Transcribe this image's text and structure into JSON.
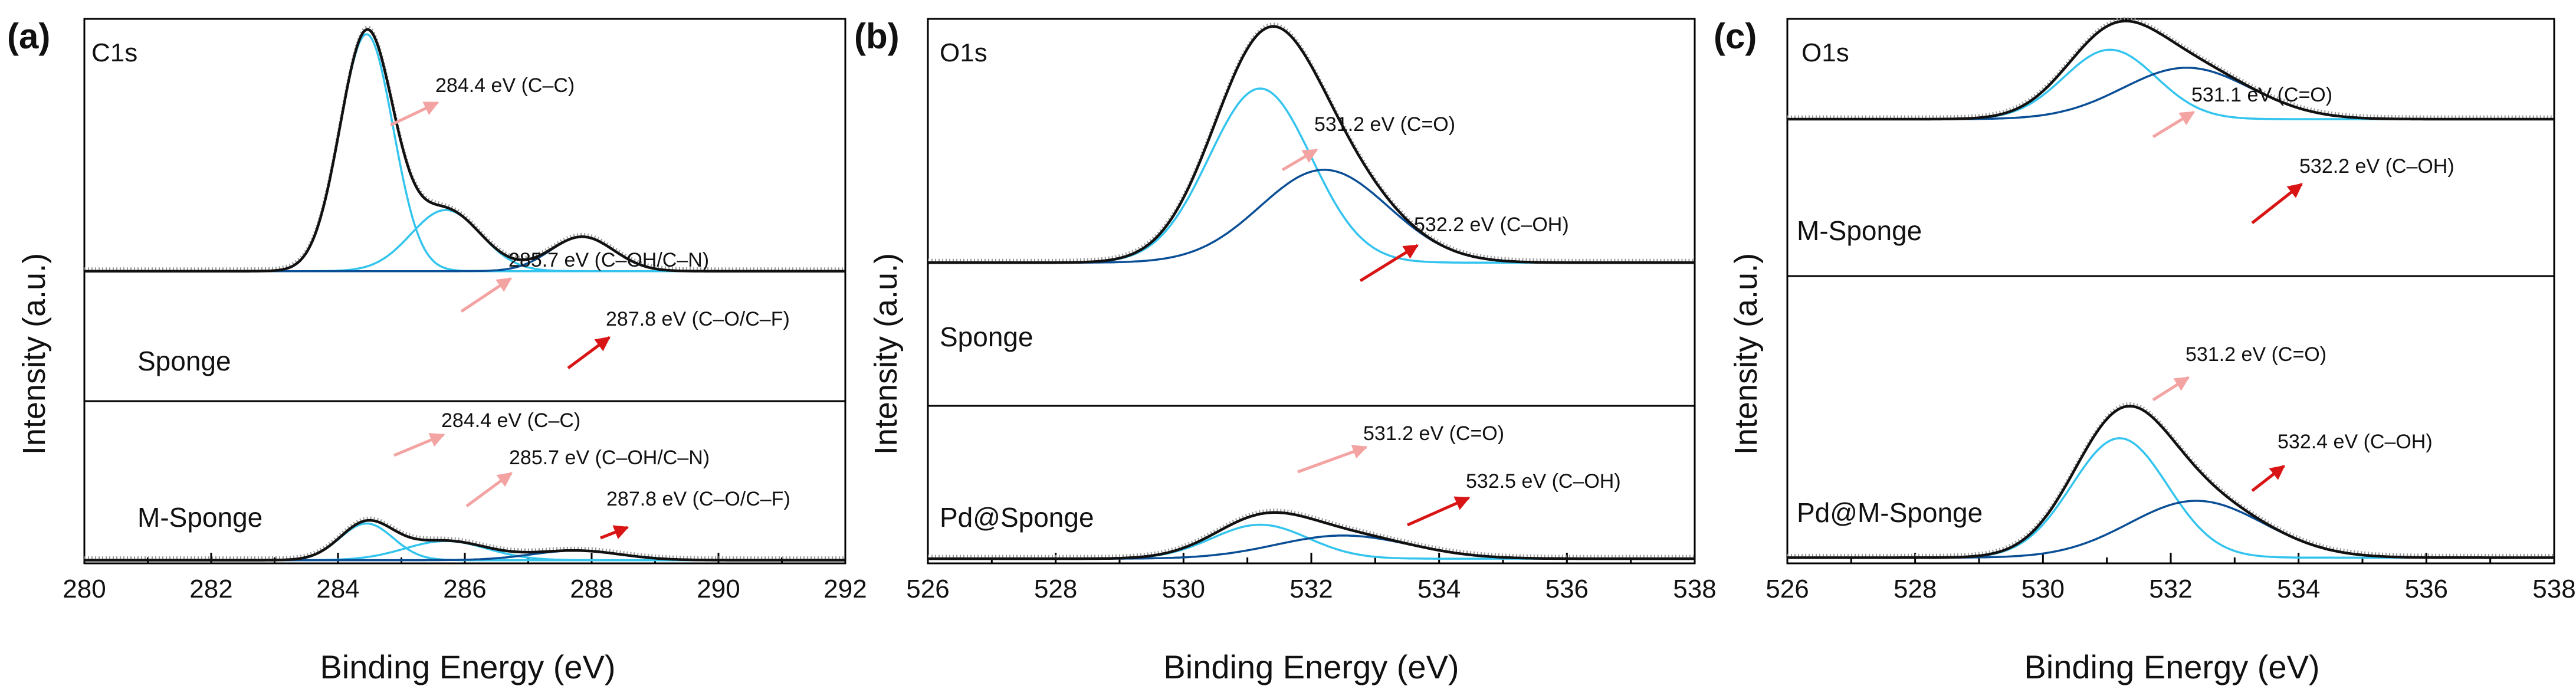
{
  "colors": {
    "component_light": "#33c4ee",
    "component_dark": "#0a4f96",
    "envelope": "#111111",
    "raw_data": "#9a9a9a",
    "arrow_light": "#f4a3a3",
    "arrow_dark": "#d81414",
    "axis": "#000000"
  },
  "chart_data": [
    {
      "type": "line",
      "panel_label": "(a)",
      "title": "C1s",
      "xlabel": "Binding Energy (eV)",
      "ylabel": "Intensity (a.u.)",
      "xlim": [
        280,
        292
      ],
      "ylim": [
        0,
        100
      ],
      "x_ticks": [
        "280",
        "282",
        "284",
        "286",
        "288",
        "290",
        "292"
      ],
      "spectra": [
        {
          "name": "Sponge",
          "baseline": 34,
          "components": [
            {
              "center": 284.45,
              "height": 62,
              "width": 0.42,
              "color": "light"
            },
            {
              "center": 285.7,
              "height": 16,
              "width": 0.55,
              "color": "light"
            },
            {
              "center": 287.85,
              "height": 9,
              "width": 0.5,
              "color": "dark"
            }
          ],
          "annotations": [
            {
              "text": "284.4 eV (C–C)",
              "x": 284.4,
              "arrow": "light"
            },
            {
              "text": "285.7 eV (C–OH/C–N)",
              "x": 285.7,
              "arrow": "light"
            },
            {
              "text": "287.8 eV (C–O/C–F)",
              "x": 287.8,
              "arrow": "dark"
            }
          ]
        },
        {
          "name": "M-Sponge",
          "baseline": 2,
          "components": [
            {
              "center": 284.45,
              "height": 23,
              "width": 0.42,
              "color": "light"
            },
            {
              "center": 285.7,
              "height": 12,
              "width": 0.65,
              "color": "light"
            },
            {
              "center": 287.75,
              "height": 6,
              "width": 0.7,
              "color": "dark"
            }
          ],
          "annotations": [
            {
              "text": "284.4 eV (C–C)",
              "x": 284.4,
              "arrow": "light"
            },
            {
              "text": "285.7 eV (C–OH/C–N)",
              "x": 285.7,
              "arrow": "light"
            },
            {
              "text": "287.8 eV (C–O/C–F)",
              "x": 287.8,
              "arrow": "dark"
            }
          ]
        }
      ]
    },
    {
      "type": "line",
      "panel_label": "(b)",
      "title": "O1s",
      "xlabel": "Binding Energy (eV)",
      "ylabel": "Intensity (a.u.)",
      "xlim": [
        526,
        538
      ],
      "ylim": [
        0,
        100
      ],
      "x_ticks": [
        "526",
        "528",
        "530",
        "532",
        "534",
        "536",
        "538"
      ],
      "spectra": [
        {
          "name": "Sponge",
          "baseline": 37,
          "components": [
            {
              "center": 531.2,
              "height": 45,
              "width": 0.8,
              "color": "light"
            },
            {
              "center": 532.2,
              "height": 24,
              "width": 1.0,
              "color": "dark"
            }
          ],
          "annotations": [
            {
              "text": "531.2 eV (C=O)",
              "x": 531.2,
              "arrow": "light"
            },
            {
              "text": "532.2 eV (C–OH)",
              "x": 532.2,
              "arrow": "dark"
            }
          ]
        },
        {
          "name": "Pd@Sponge",
          "baseline": 3,
          "components": [
            {
              "center": 531.2,
              "height": 22,
              "width": 0.75,
              "color": "light"
            },
            {
              "center": 532.5,
              "height": 15,
              "width": 1.05,
              "color": "dark"
            }
          ],
          "annotations": [
            {
              "text": "531.2 eV (C=O)",
              "x": 531.2,
              "arrow": "light"
            },
            {
              "text": "532.5 eV (C–OH)",
              "x": 532.5,
              "arrow": "dark"
            }
          ]
        }
      ]
    },
    {
      "type": "line",
      "panel_label": "(c)",
      "title": "O1s",
      "xlabel": "Binding Energy (eV)",
      "ylabel": "Intensity (a.u.)",
      "xlim": [
        526,
        538
      ],
      "ylim": [
        0,
        100
      ],
      "x_ticks": [
        "526",
        "528",
        "530",
        "532",
        "534",
        "536",
        "538"
      ],
      "spectra": [
        {
          "name": "M-Sponge",
          "baseline": 61,
          "components": [
            {
              "center": 531.05,
              "height": 27,
              "width": 0.72,
              "color": "light"
            },
            {
              "center": 532.25,
              "height": 20,
              "width": 1.0,
              "color": "dark"
            }
          ],
          "annotations": [
            {
              "text": "531.1 eV (C=O)",
              "x": 531.1,
              "arrow": "light"
            },
            {
              "text": "532.2 eV (C–OH)",
              "x": 532.2,
              "arrow": "dark"
            }
          ]
        },
        {
          "name": "Pd@M-Sponge",
          "baseline": 2,
          "components": [
            {
              "center": 531.2,
              "height": 42,
              "width": 0.75,
              "color": "light"
            },
            {
              "center": 532.4,
              "height": 20,
              "width": 1.05,
              "color": "dark"
            }
          ],
          "annotations": [
            {
              "text": "531.2 eV (C=O)",
              "x": 531.2,
              "arrow": "light"
            },
            {
              "text": "532.4 eV (C–OH)",
              "x": 532.4,
              "arrow": "dark"
            }
          ]
        }
      ]
    }
  ]
}
